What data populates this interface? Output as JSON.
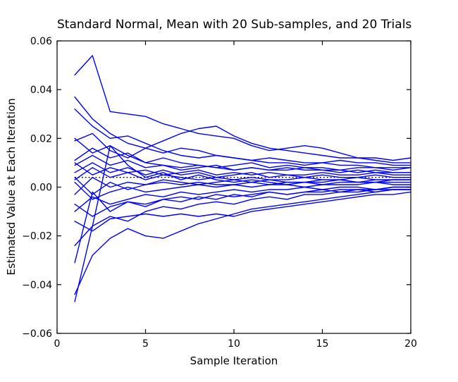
{
  "figure": {
    "background_color": "#ffffff",
    "frame_color": "#000000",
    "trial_line_color": "#0000ff",
    "reference_line_color": "#000000"
  },
  "chart_data": {
    "type": "line",
    "title": "Standard Normal, Mean with 20 Sub-samples, and 20 Trials",
    "xlabel": "Sample Iteration",
    "ylabel": "Estimated Value at Each Iteration",
    "xlim": [
      0,
      20
    ],
    "ylim": [
      -0.06,
      0.06
    ],
    "grid": false,
    "legend_position": "none",
    "xticks": [
      0,
      5,
      10,
      15,
      20
    ],
    "xtick_labels": [
      "0",
      "5",
      "10",
      "15",
      "20"
    ],
    "yticks": [
      0.06,
      0.04,
      0.02,
      0.0,
      -0.02,
      -0.04,
      -0.06
    ],
    "ytick_labels": [
      "0.06",
      "0.04",
      "0.02",
      "0.00",
      "−0.02",
      "−0.04",
      "−0.06"
    ],
    "x": [
      1,
      2,
      3,
      4,
      5,
      6,
      7,
      8,
      9,
      10,
      11,
      12,
      13,
      14,
      15,
      16,
      17,
      18,
      19,
      20
    ],
    "reference_line": {
      "name": "overall-mean-dotted-line",
      "style": "dotted",
      "color": "#000000",
      "value": 0.004,
      "x_start": 1,
      "x_end": 20
    },
    "series": [
      {
        "name": "trial-01",
        "color": "#0000ff",
        "values": [
          0.046,
          0.054,
          0.031,
          0.03,
          0.029,
          0.026,
          0.024,
          0.022,
          0.021,
          0.02,
          0.017,
          0.015,
          0.016,
          0.017,
          0.016,
          0.014,
          0.012,
          0.012,
          0.011,
          0.012
        ]
      },
      {
        "name": "trial-02",
        "color": "#0000ff",
        "values": [
          0.037,
          0.028,
          0.022,
          0.018,
          0.016,
          0.014,
          0.016,
          0.015,
          0.013,
          0.012,
          0.011,
          0.012,
          0.011,
          0.01,
          0.01,
          0.011,
          0.01,
          0.01,
          0.009,
          0.009
        ]
      },
      {
        "name": "trial-03",
        "color": "#0000ff",
        "values": [
          0.032,
          0.025,
          0.02,
          0.021,
          0.018,
          0.015,
          0.013,
          0.012,
          0.013,
          0.012,
          0.011,
          0.01,
          0.01,
          0.009,
          0.01,
          0.009,
          0.009,
          0.008,
          0.008,
          0.008
        ]
      },
      {
        "name": "trial-04",
        "color": "#0000ff",
        "values": [
          0.02,
          0.014,
          0.017,
          0.013,
          0.01,
          0.009,
          0.008,
          0.009,
          0.008,
          0.007,
          0.008,
          0.007,
          0.007,
          0.008,
          0.007,
          0.007,
          0.006,
          0.007,
          0.006,
          0.006
        ]
      },
      {
        "name": "trial-05",
        "color": "#0000ff",
        "values": [
          0.019,
          0.022,
          0.015,
          0.012,
          0.016,
          0.019,
          0.022,
          0.024,
          0.025,
          0.021,
          0.018,
          0.016,
          0.015,
          0.014,
          0.013,
          0.012,
          0.012,
          0.011,
          0.01,
          0.01
        ]
      },
      {
        "name": "trial-06",
        "color": "#0000ff",
        "values": [
          0.011,
          0.016,
          0.012,
          0.014,
          0.01,
          0.012,
          0.01,
          0.009,
          0.008,
          0.009,
          0.01,
          0.008,
          0.009,
          0.008,
          0.008,
          0.007,
          0.008,
          0.008,
          0.007,
          0.008
        ]
      },
      {
        "name": "trial-07",
        "color": "#0000ff",
        "values": [
          0.01,
          0.005,
          0.008,
          0.006,
          0.007,
          0.005,
          0.006,
          0.007,
          0.005,
          0.006,
          0.005,
          0.006,
          0.005,
          0.005,
          0.006,
          0.005,
          0.005,
          0.006,
          0.005,
          0.005
        ]
      },
      {
        "name": "trial-08",
        "color": "#0000ff",
        "values": [
          0.009,
          0.013,
          0.009,
          0.011,
          0.008,
          0.009,
          0.007,
          0.008,
          0.009,
          0.007,
          0.008,
          0.007,
          0.008,
          0.007,
          0.007,
          0.006,
          0.007,
          0.006,
          0.006,
          0.006
        ]
      },
      {
        "name": "trial-09",
        "color": "#0000ff",
        "values": [
          0.006,
          0.01,
          0.006,
          0.008,
          0.005,
          0.007,
          0.005,
          0.006,
          0.004,
          0.005,
          0.006,
          0.004,
          0.005,
          0.004,
          0.005,
          0.004,
          0.004,
          0.005,
          0.004,
          0.004
        ]
      },
      {
        "name": "trial-10",
        "color": "#0000ff",
        "values": [
          0.004,
          -0.003,
          0.002,
          -0.001,
          0.001,
          0.003,
          0.002,
          0.001,
          0.002,
          0.003,
          0.002,
          0.003,
          0.002,
          0.002,
          0.003,
          0.003,
          0.002,
          0.003,
          0.003,
          0.003
        ]
      },
      {
        "name": "trial-11",
        "color": "#0000ff",
        "values": [
          0.003,
          0.008,
          0.004,
          0.006,
          0.003,
          0.005,
          0.004,
          0.003,
          0.004,
          0.003,
          0.004,
          0.003,
          0.003,
          0.004,
          0.003,
          0.003,
          0.004,
          0.003,
          0.003,
          0.003
        ]
      },
      {
        "name": "trial-12",
        "color": "#0000ff",
        "values": [
          0.002,
          -0.005,
          -0.002,
          0.0,
          -0.002,
          -0.001,
          0.0,
          0.001,
          0.0,
          0.001,
          0.0,
          0.001,
          0.001,
          0.0,
          0.001,
          0.001,
          0.001,
          0.002,
          0.001,
          0.001
        ]
      },
      {
        "name": "trial-13",
        "color": "#0000ff",
        "values": [
          -0.003,
          0.004,
          0.0,
          0.002,
          0.001,
          0.002,
          0.001,
          0.002,
          0.001,
          0.001,
          0.002,
          0.001,
          0.002,
          0.002,
          0.001,
          0.002,
          0.002,
          0.002,
          0.002,
          0.002
        ]
      },
      {
        "name": "trial-14",
        "color": "#0000ff",
        "values": [
          -0.007,
          -0.012,
          -0.008,
          -0.006,
          -0.007,
          -0.005,
          -0.004,
          -0.005,
          -0.003,
          -0.004,
          -0.003,
          -0.002,
          -0.003,
          -0.002,
          -0.002,
          -0.001,
          -0.001,
          -0.002,
          -0.001,
          -0.001
        ]
      },
      {
        "name": "trial-15",
        "color": "#0000ff",
        "values": [
          -0.01,
          -0.004,
          -0.007,
          -0.005,
          -0.003,
          -0.004,
          -0.002,
          -0.003,
          -0.002,
          -0.001,
          -0.002,
          -0.001,
          -0.001,
          0.0,
          -0.001,
          0.0,
          0.0,
          -0.001,
          0.0,
          0.0
        ]
      },
      {
        "name": "trial-16",
        "color": "#0000ff",
        "values": [
          -0.014,
          -0.018,
          -0.013,
          -0.012,
          -0.011,
          -0.012,
          -0.011,
          -0.012,
          -0.011,
          -0.012,
          -0.01,
          -0.009,
          -0.008,
          -0.007,
          -0.006,
          -0.005,
          -0.004,
          -0.003,
          -0.003,
          -0.002
        ]
      },
      {
        "name": "trial-17",
        "color": "#0000ff",
        "values": [
          -0.024,
          -0.016,
          -0.012,
          -0.014,
          -0.01,
          -0.008,
          -0.009,
          -0.007,
          -0.006,
          -0.007,
          -0.005,
          -0.004,
          -0.005,
          -0.003,
          -0.003,
          -0.002,
          -0.002,
          -0.001,
          -0.001,
          -0.001
        ]
      },
      {
        "name": "trial-18",
        "color": "#0000ff",
        "values": [
          -0.031,
          -0.002,
          -0.01,
          -0.006,
          -0.008,
          -0.005,
          -0.006,
          -0.004,
          -0.005,
          -0.003,
          -0.004,
          -0.002,
          -0.003,
          -0.002,
          -0.001,
          -0.002,
          -0.001,
          -0.001,
          0.0,
          0.0
        ]
      },
      {
        "name": "trial-19",
        "color": "#0000ff",
        "values": [
          -0.044,
          -0.028,
          -0.021,
          -0.017,
          -0.02,
          -0.021,
          -0.018,
          -0.015,
          -0.013,
          -0.011,
          -0.009,
          -0.008,
          -0.007,
          -0.006,
          -0.005,
          -0.004,
          -0.003,
          -0.002,
          -0.001,
          -0.001
        ]
      },
      {
        "name": "trial-20",
        "color": "#0000ff",
        "values": [
          -0.047,
          -0.016,
          0.017,
          0.009,
          0.004,
          0.006,
          0.003,
          0.005,
          0.003,
          0.002,
          0.003,
          0.002,
          0.001,
          0.002,
          0.002,
          0.003,
          0.002,
          0.002,
          0.003,
          0.003
        ]
      }
    ]
  }
}
